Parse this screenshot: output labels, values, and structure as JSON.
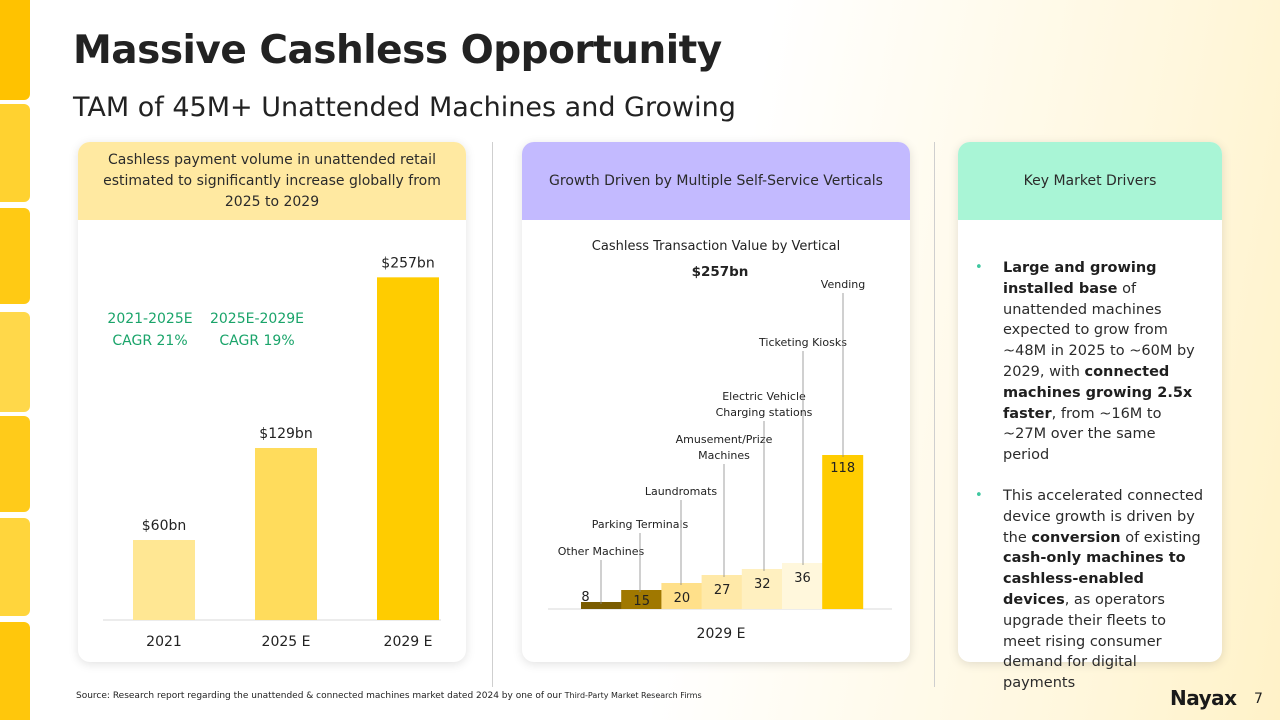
{
  "title": "Massive Cashless Opportunity",
  "subtitle": "TAM of 45M+ Unattended Machines and Growing",
  "colors": {
    "stripe": "#ffc200",
    "panel1_head": "#ffe9a1",
    "panel2_head": "#c3baff",
    "panel3_head": "#a9f5d6",
    "cagr_green": "#1aa46a",
    "bullet_green": "#3fc7a0"
  },
  "panel1": {
    "header": "Cashless payment volume in unattended retail estimated to significantly increase globally from 2025 to 2029",
    "cagr1": {
      "line1": "2021-2025E",
      "line2": "CAGR 21%"
    },
    "cagr2": {
      "line1": "2025E-2029E",
      "line2": "CAGR 19%"
    }
  },
  "panel2": {
    "header": "Growth Driven by Multiple Self-Service Verticals",
    "chart_title": "Cashless Transaction Value by Vertical",
    "total_label": "$257bn"
  },
  "panel3": {
    "header": "Key Market Drivers",
    "bullets": [
      [
        {
          "t": "Large and growing installed base",
          "b": true
        },
        {
          "t": " of unattended machines expected to grow from ~48M in 2025 to ~60M by 2029, with ",
          "b": false
        },
        {
          "t": "connected machines growing 2.5x faster",
          "b": true
        },
        {
          "t": ", from ~16M to ~27M over the same period",
          "b": false
        }
      ],
      [
        {
          "t": "This accelerated connected device growth is driven by the ",
          "b": false
        },
        {
          "t": "conversion",
          "b": true
        },
        {
          "t": " of existing ",
          "b": false
        },
        {
          "t": "cash-only machines to cashless-enabled devices",
          "b": true
        },
        {
          "t": ", as operators upgrade their fleets to meet rising consumer demand for digital payments",
          "b": false
        }
      ]
    ]
  },
  "chart_data": [
    {
      "type": "bar",
      "title": "",
      "categories": [
        "2021",
        "2025 E",
        "2029 E"
      ],
      "values": [
        60,
        129,
        257
      ],
      "labels": [
        "$60bn",
        "$129bn",
        "$257bn"
      ],
      "colors": [
        "#ffe793",
        "#ffdc5c",
        "#ffcc00"
      ],
      "unit": "$bn",
      "xlabel": "",
      "ylabel": "",
      "ylim": [
        0,
        270
      ]
    },
    {
      "type": "bar",
      "subtype": "waterfall",
      "title": "Cashless Transaction Value by Vertical",
      "x_category": "2029 E",
      "total_label": "$257bn",
      "series": [
        {
          "name": "Other Machines",
          "value": 8,
          "color": "#7a5c00"
        },
        {
          "name": "Parking Terminals",
          "value": 15,
          "color": "#a07800"
        },
        {
          "name": "Laundromats",
          "value": 20,
          "color": "#ffe08a"
        },
        {
          "name": "Amusement/Prize Machines",
          "value": 27,
          "color": "#ffe9a8"
        },
        {
          "name": "Electric Vehicle Charging stations",
          "value": 32,
          "color": "#fff0c0"
        },
        {
          "name": "Ticketing Kiosks",
          "value": 36,
          "color": "#fff7dc"
        },
        {
          "name": "Vending",
          "value": 118,
          "color": "#ffcc00"
        }
      ],
      "category_labels": [
        [
          "Other Machines"
        ],
        [
          "Parking Terminals"
        ],
        [
          "Laundromats"
        ],
        [
          "Amusement/Prize",
          "Machines"
        ],
        [
          "Electric Vehicle",
          "Charging stations"
        ],
        [
          "Ticketing Kiosks"
        ],
        [
          "Vending"
        ]
      ],
      "ylim": [
        0,
        260
      ]
    }
  ],
  "footer": {
    "source_prefix": "Source:",
    "source_text": " Research report regarding the unattended & connected machines market dated 2024 by one of our ",
    "source_small": "Third-Party Market Research Firms",
    "logo": "Nayax",
    "page_number": "7"
  }
}
